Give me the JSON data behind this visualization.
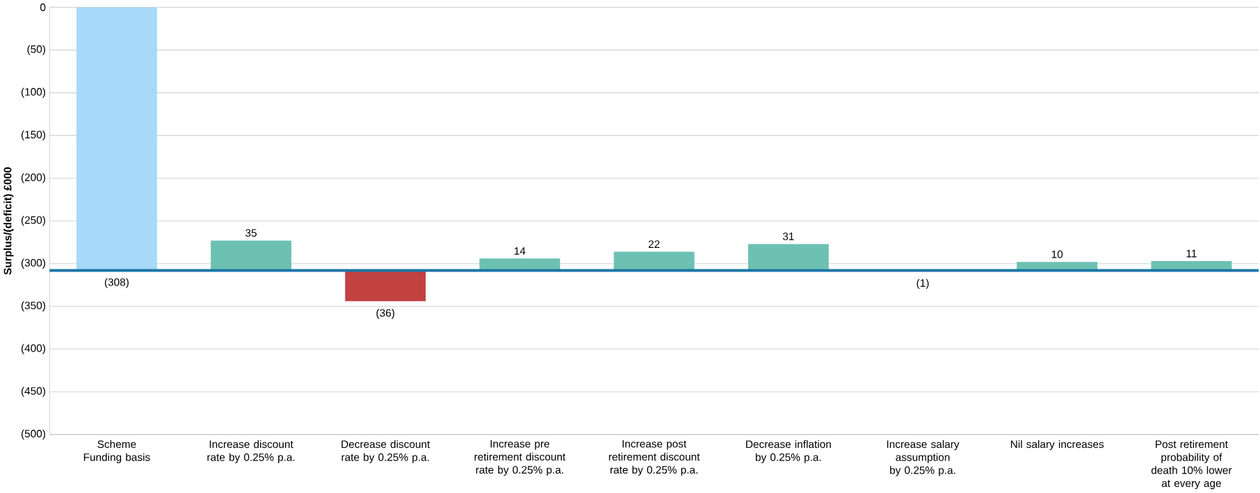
{
  "chart_data": {
    "type": "bar",
    "ylabel": "Surplus/(deficit) £000",
    "categories": [
      "Scheme Funding basis",
      "Increase discount rate by 0.25% p.a.",
      "Decrease discount rate by 0.25% p.a.",
      "Increase pre retirement discount rate by 0.25% p.a.",
      "Increase post retirement discount rate by 0.25% p.a.",
      "Decrease inflation by 0.25% p.a.",
      "Increase salary assumption by 0.25% p.a.",
      "Nil salary increases",
      "Post retirement probability of death 10% lower at every age"
    ],
    "values": [
      -308,
      35,
      -36,
      14,
      22,
      31,
      -1,
      10,
      11
    ],
    "base": [
      0,
      -308,
      -308,
      -308,
      -308,
      -308,
      -308,
      -308,
      -308
    ],
    "colors": [
      "#a6daf8",
      "#6cc1b3",
      "#c24141",
      "#6cc1b3",
      "#6cc1b3",
      "#6cc1b3",
      "#c24141",
      "#6cc1b3",
      "#6cc1b3"
    ],
    "value_labels": [
      "(308)",
      "35",
      "(36)",
      "14",
      "22",
      "31",
      "(1)",
      "10",
      "11"
    ],
    "ylim": [
      -500,
      0
    ],
    "yticks": [
      0,
      {
        "value": -50,
        "label": "(50)"
      },
      {
        "value": -100,
        "label": "(100)"
      },
      {
        "value": -150,
        "label": "(150)"
      },
      {
        "value": -200,
        "label": "(200)"
      },
      {
        "value": -250,
        "label": "(250)"
      },
      {
        "value": -300,
        "label": "(300)"
      },
      {
        "value": -350,
        "label": "(350)"
      },
      {
        "value": -400,
        "label": "(400)"
      },
      {
        "value": -450,
        "label": "(450)"
      },
      {
        "value": -500,
        "label": "(500)"
      }
    ],
    "grid": "y",
    "ref_lines": [
      {
        "axis": "y",
        "value": -308,
        "color": "#1b76a8"
      }
    ]
  }
}
